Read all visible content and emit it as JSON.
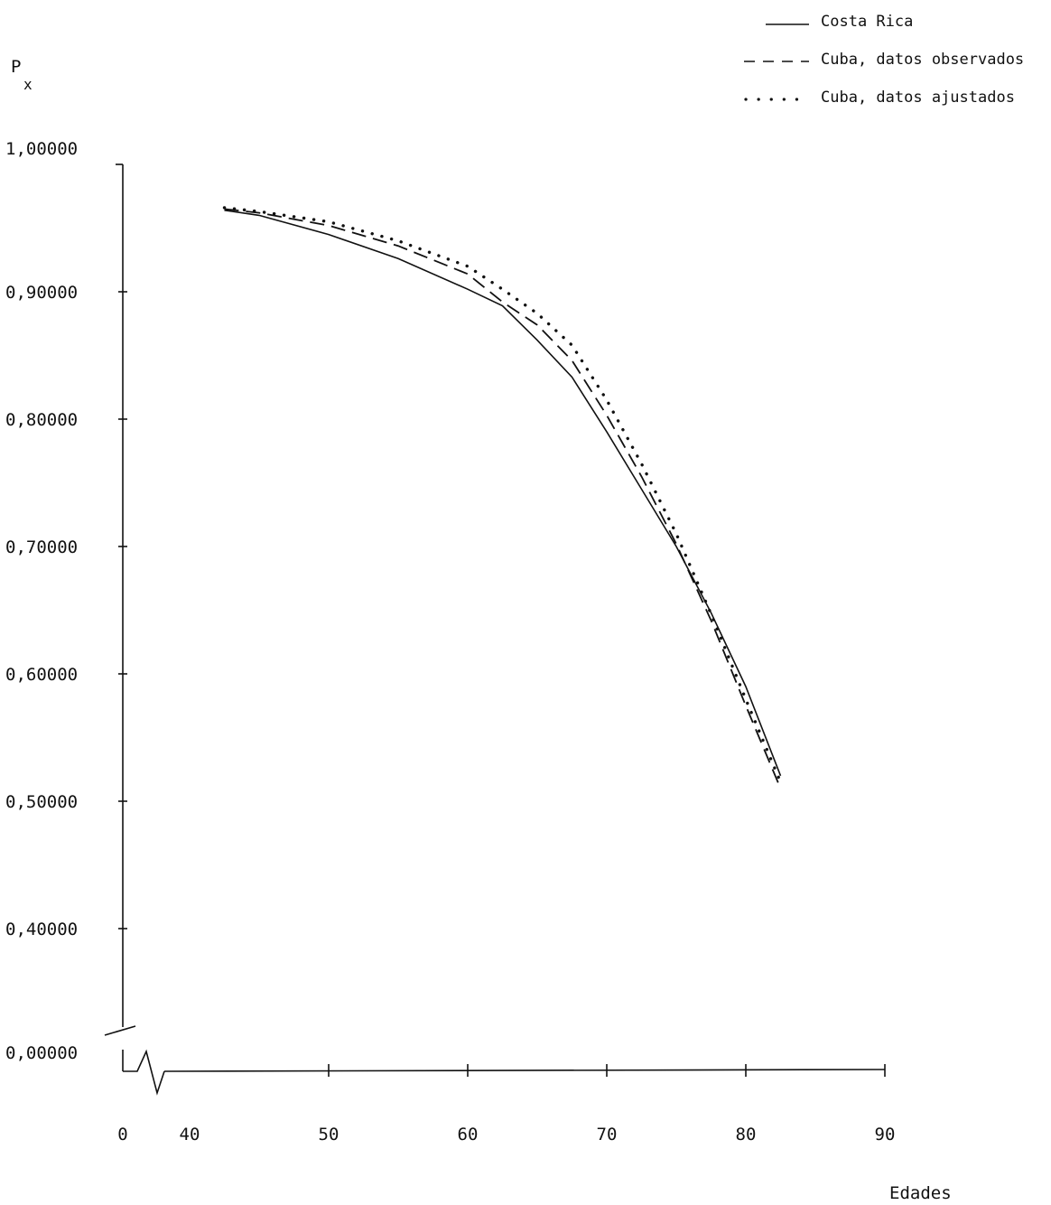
{
  "chart_data": {
    "type": "line",
    "title": "",
    "ylabel": "P",
    "ylabel_sub": "x",
    "xlabel": "Edades",
    "y_ticks": [
      "1,00000",
      "0,90000",
      "0,80000",
      "0,70000",
      "0,60000",
      "0,50000",
      "0,40000",
      "0,00000"
    ],
    "y_tick_values": [
      1.0,
      0.9,
      0.8,
      0.7,
      0.6,
      0.5,
      0.4,
      0.0
    ],
    "x_ticks": [
      "0",
      "40",
      "50",
      "60",
      "70",
      "80",
      "90"
    ],
    "x_tick_values": [
      0,
      40,
      50,
      60,
      70,
      80,
      90
    ],
    "axis_break": true,
    "legend_position": "top-right",
    "series": [
      {
        "name": "Costa Rica",
        "style": "solid",
        "x": [
          42.5,
          45,
          50,
          55,
          60,
          62.5,
          65,
          67.5,
          70,
          72.5,
          75,
          77.5,
          80,
          82.5
        ],
        "y": [
          0.964,
          0.96,
          0.945,
          0.926,
          0.902,
          0.889,
          0.862,
          0.833,
          0.79,
          0.745,
          0.7,
          0.648,
          0.59,
          0.52
        ]
      },
      {
        "name": "Cuba, datos observados",
        "style": "dashed",
        "x": [
          42.5,
          45,
          50,
          55,
          60,
          62.5,
          65,
          67.5,
          70,
          72.5,
          75,
          77.5,
          80,
          82.5
        ],
        "y": [
          0.965,
          0.962,
          0.952,
          0.936,
          0.914,
          0.892,
          0.874,
          0.846,
          0.803,
          0.755,
          0.702,
          0.642,
          0.575,
          0.51
        ]
      },
      {
        "name": "Cuba, datos ajustados",
        "style": "dotted",
        "x": [
          42.5,
          45,
          50,
          55,
          60,
          62.5,
          65,
          67.5,
          70,
          72.5,
          75,
          77.5,
          80,
          82.5
        ],
        "y": [
          0.966,
          0.963,
          0.955,
          0.94,
          0.92,
          0.902,
          0.883,
          0.858,
          0.815,
          0.765,
          0.71,
          0.647,
          0.58,
          0.515
        ]
      }
    ]
  }
}
